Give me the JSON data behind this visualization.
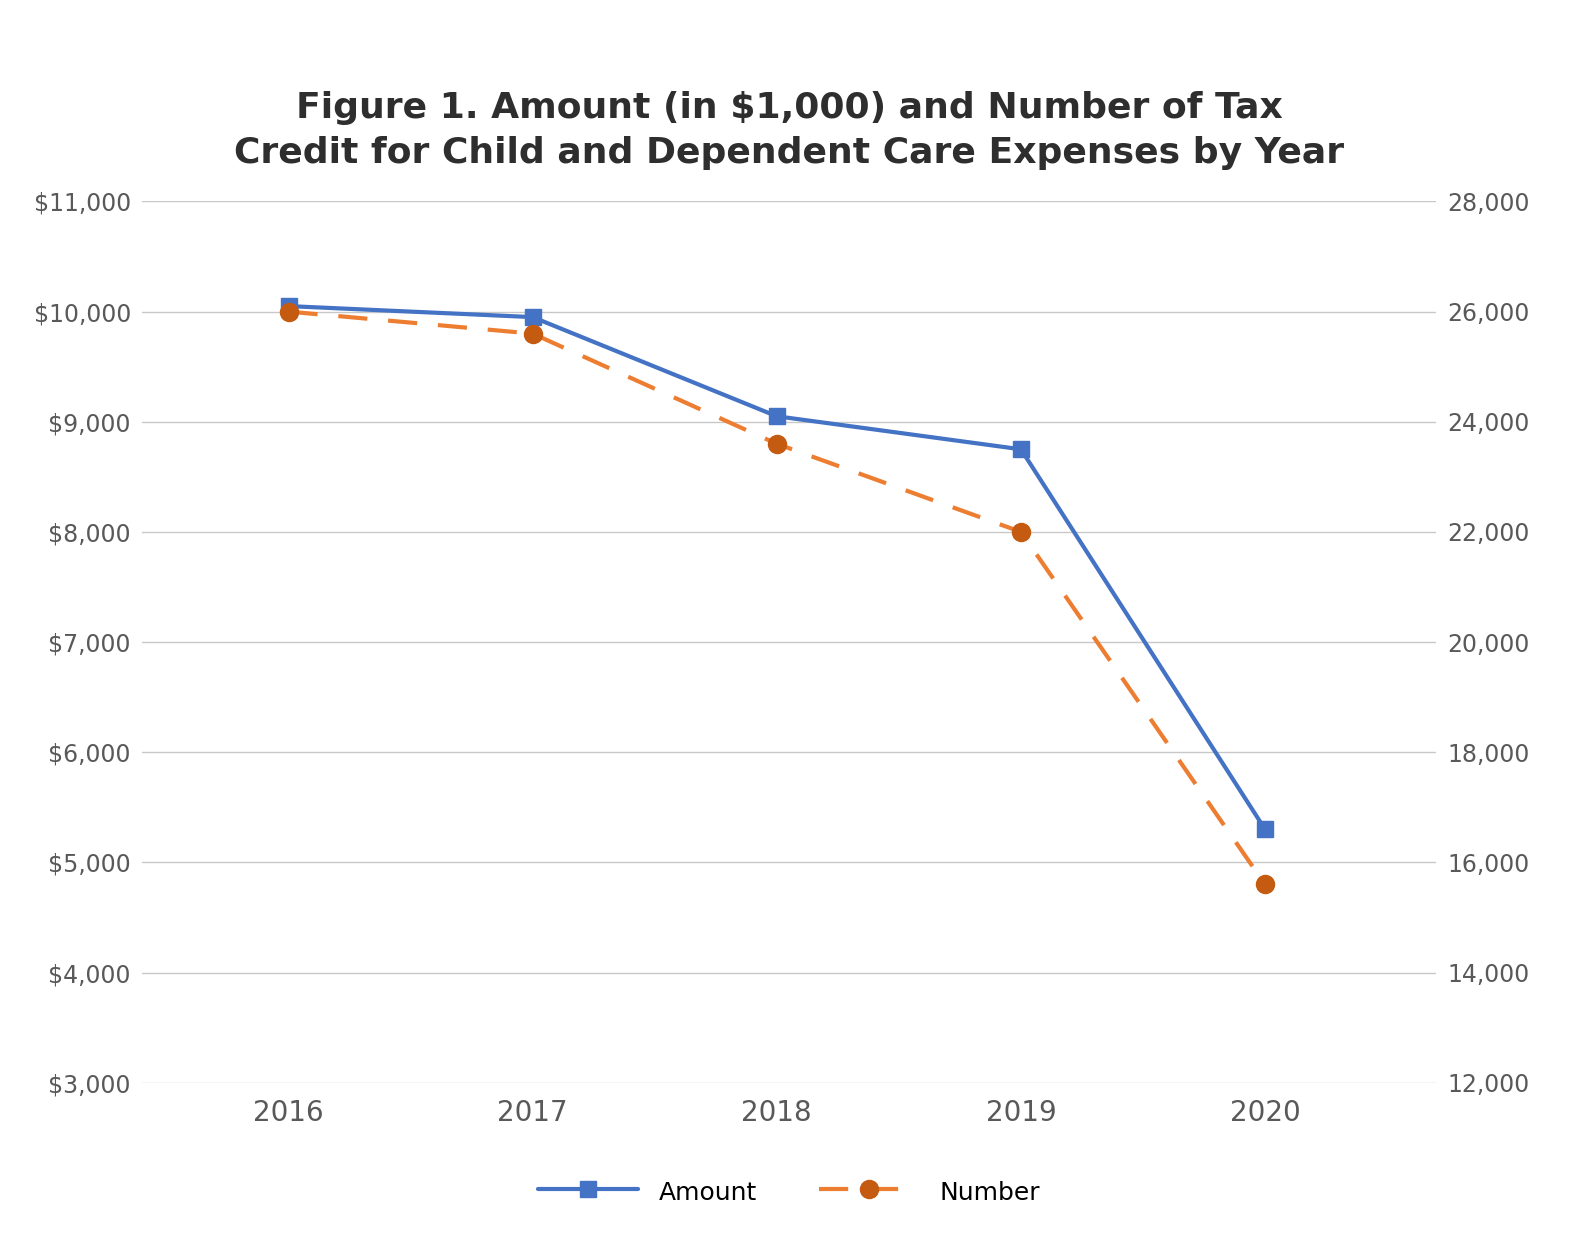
{
  "title": "Figure 1. Amount (in $1,000) and Number of Tax\nCredit for Child and Dependent Care Expenses by Year",
  "years": [
    2016,
    2017,
    2018,
    2019,
    2020
  ],
  "amount": [
    10050,
    9950,
    9050,
    8750,
    5300
  ],
  "number": [
    26000,
    25600,
    23600,
    22000,
    15600
  ],
  "left_ylim": [
    3000,
    11000
  ],
  "right_ylim": [
    12000,
    28000
  ],
  "left_yticks": [
    3000,
    4000,
    5000,
    6000,
    7000,
    8000,
    9000,
    10000,
    11000
  ],
  "right_yticks": [
    12000,
    14000,
    16000,
    18000,
    20000,
    22000,
    24000,
    26000,
    28000
  ],
  "amount_color": "#4472C4",
  "number_color": "#ED7D31",
  "marker_number_color": "#C55A11",
  "background_color": "#FFFFFF",
  "title_fontsize": 26,
  "tick_fontsize": 17,
  "legend_fontsize": 18
}
